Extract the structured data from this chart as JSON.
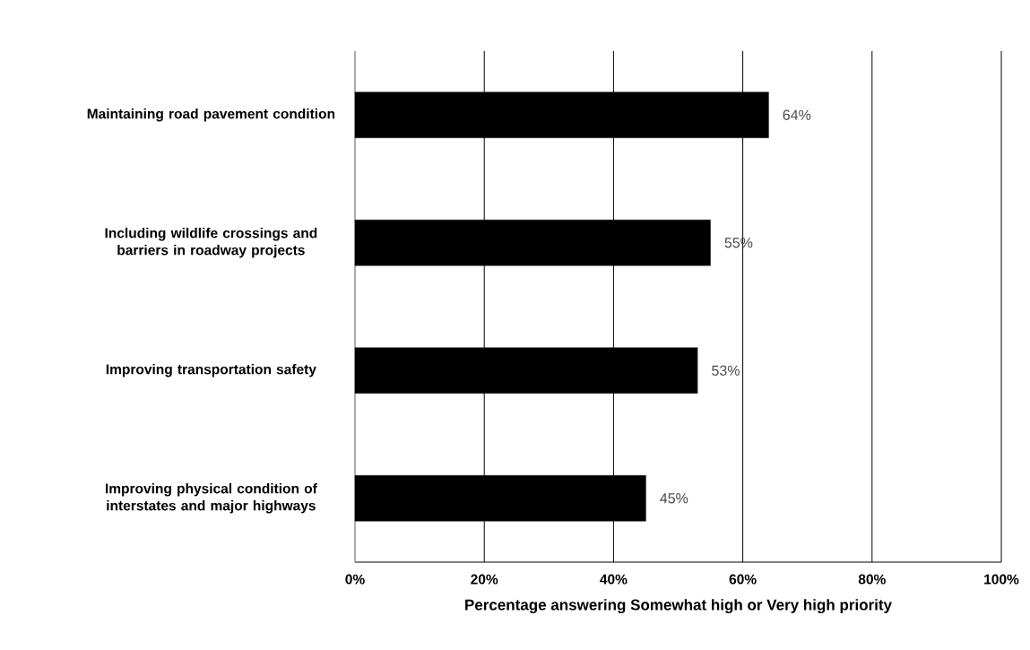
{
  "chart_data": {
    "type": "bar",
    "orientation": "horizontal",
    "xlabel": "Percentage answering Somewhat high or Very high priority",
    "categories": [
      "Maintaining road pavement condition",
      "Including wildlife crossings and barriers in roadway projects",
      "Improving transportation safety",
      "Improving physical condition of interstates and major highways"
    ],
    "values": [
      64,
      55,
      53,
      45
    ],
    "value_labels": [
      "64%",
      "55%",
      "53%",
      "45%"
    ],
    "color": "#000000",
    "xlim": [
      0,
      100
    ],
    "xticks": [
      {
        "value": 0,
        "label": "0%"
      },
      {
        "value": 20,
        "label": "20%"
      },
      {
        "value": 40,
        "label": "40%"
      },
      {
        "value": 60,
        "label": "60%"
      },
      {
        "value": 80,
        "label": "80%"
      },
      {
        "value": 100,
        "label": "100%"
      }
    ],
    "grid": "x"
  }
}
